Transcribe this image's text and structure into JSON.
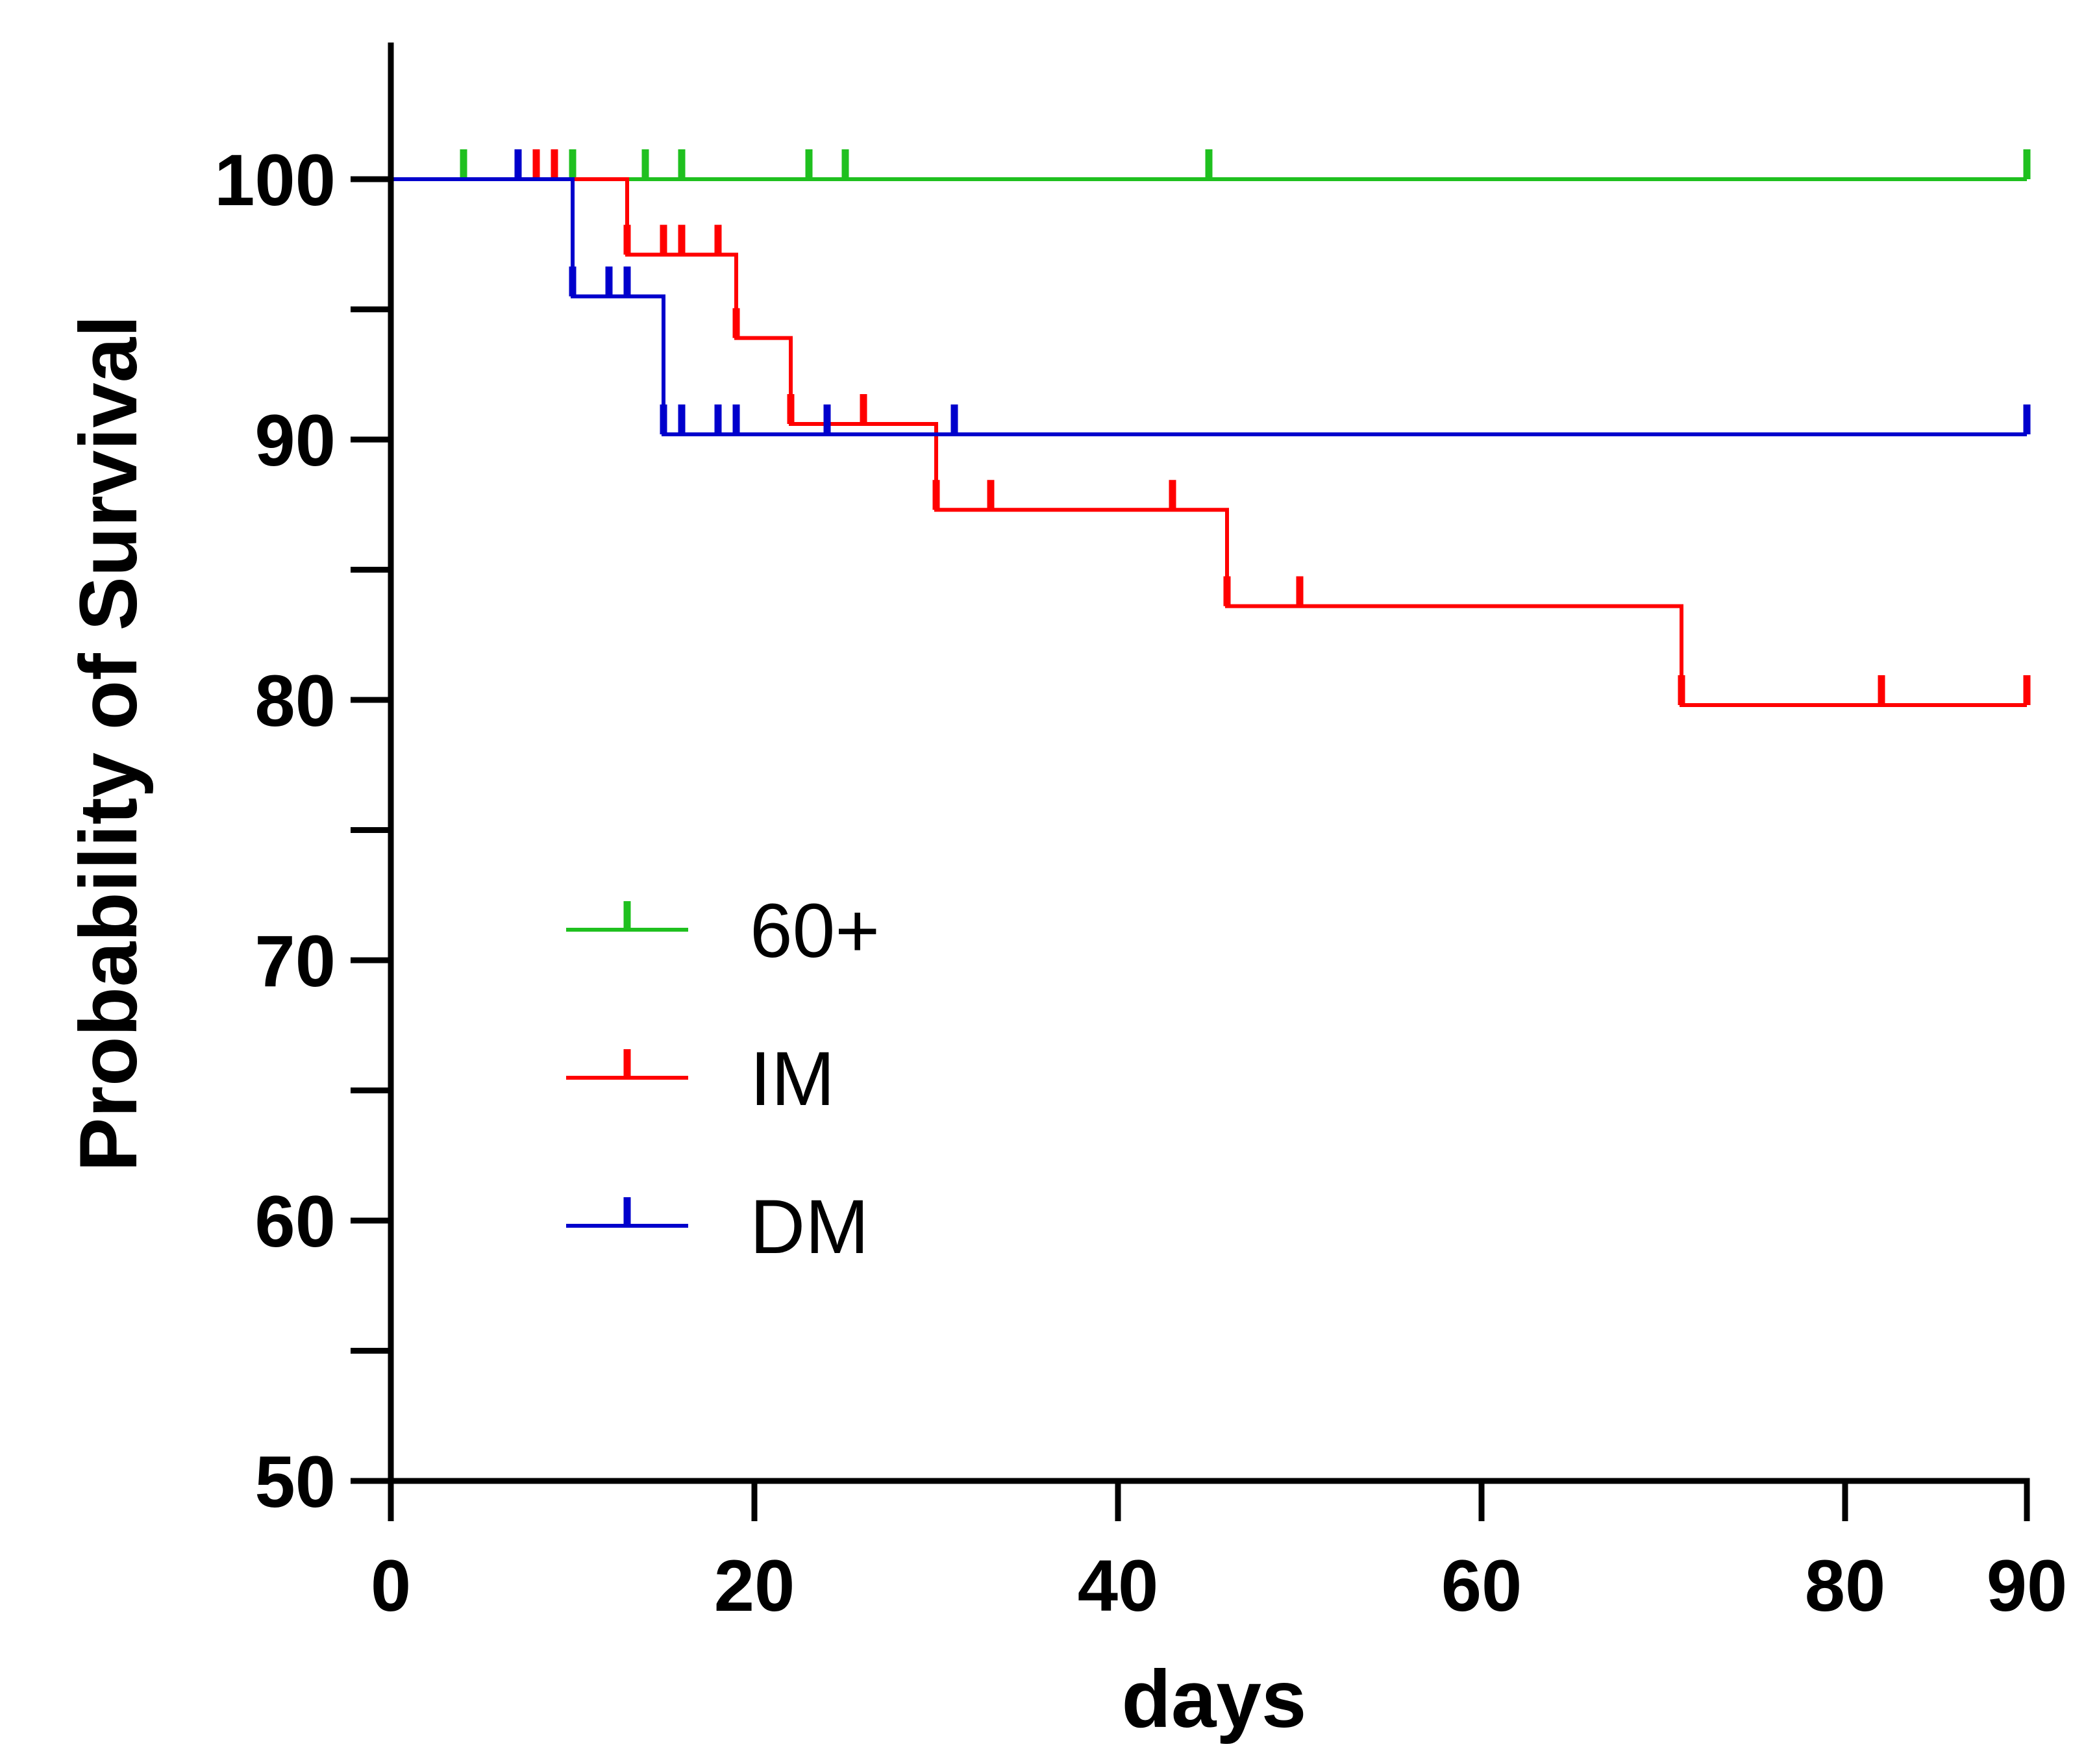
{
  "chart_data": {
    "type": "line",
    "subtype": "kaplan-meier step",
    "title": "",
    "xlabel": "days",
    "ylabel": "Probability of Survival",
    "xlim": [
      0,
      90
    ],
    "ylim": [
      50,
      105
    ],
    "x_ticks": [
      0,
      20,
      40,
      60,
      80,
      90
    ],
    "y_ticks_labeled": [
      50,
      60,
      70,
      80,
      90,
      100
    ],
    "y_ticks_minor": [
      55,
      65,
      75,
      85,
      95
    ],
    "grid": false,
    "legend_position": "lower-left",
    "series": [
      {
        "name": "60+",
        "color": "#1fc01f",
        "steps": [
          [
            0,
            100
          ],
          [
            90,
            100
          ]
        ],
        "censored": [
          [
            4,
            100
          ],
          [
            7,
            100
          ],
          [
            10,
            100
          ],
          [
            14,
            100
          ],
          [
            16,
            100
          ],
          [
            23,
            100
          ],
          [
            25,
            100
          ],
          [
            45,
            100
          ],
          [
            90,
            100
          ]
        ]
      },
      {
        "name": "IM",
        "color": "#ff0000",
        "steps": [
          [
            0,
            100
          ],
          [
            13,
            97.1
          ],
          [
            19,
            93.9
          ],
          [
            22,
            90.6
          ],
          [
            30,
            87.3
          ],
          [
            46,
            83.6
          ],
          [
            71,
            79.8
          ],
          [
            90,
            79.8
          ]
        ],
        "censored": [
          [
            8,
            100
          ],
          [
            9,
            100
          ],
          [
            13,
            97.1
          ],
          [
            15,
            97.1
          ],
          [
            16,
            97.1
          ],
          [
            18,
            97.1
          ],
          [
            19,
            93.9
          ],
          [
            22,
            90.6
          ],
          [
            26,
            90.6
          ],
          [
            30,
            87.3
          ],
          [
            33,
            87.3
          ],
          [
            43,
            87.3
          ],
          [
            46,
            83.6
          ],
          [
            50,
            83.6
          ],
          [
            71,
            79.8
          ],
          [
            82,
            79.8
          ],
          [
            90,
            79.8
          ]
        ]
      },
      {
        "name": "DM",
        "color": "#0000cc",
        "steps": [
          [
            0,
            100
          ],
          [
            10,
            95.5
          ],
          [
            15,
            90.2
          ],
          [
            90,
            90.2
          ]
        ],
        "censored": [
          [
            7,
            100
          ],
          [
            10,
            95.5
          ],
          [
            12,
            95.5
          ],
          [
            13,
            95.5
          ],
          [
            15,
            90.2
          ],
          [
            16,
            90.2
          ],
          [
            18,
            90.2
          ],
          [
            19,
            90.2
          ],
          [
            24,
            90.2
          ],
          [
            31,
            90.2
          ],
          [
            90,
            90.2
          ]
        ]
      }
    ]
  }
}
